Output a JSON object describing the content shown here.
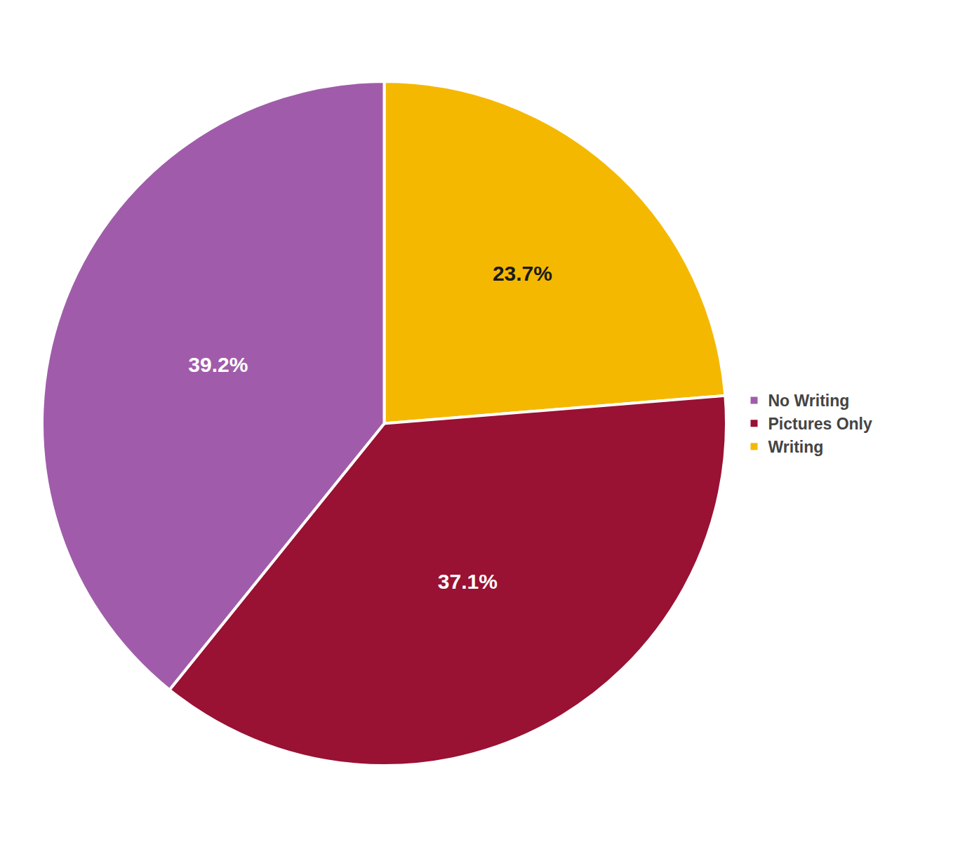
{
  "chart_data": {
    "type": "pie",
    "categories": [
      "Writing",
      "Pictures Only",
      "No Writing"
    ],
    "values": [
      23.7,
      37.1,
      39.2
    ],
    "value_labels": [
      "23.7%",
      "37.1%",
      "39.2%"
    ],
    "colors": [
      "#f5b800",
      "#991133",
      "#a05caa"
    ],
    "data_labels": true,
    "legend": "right"
  }
}
